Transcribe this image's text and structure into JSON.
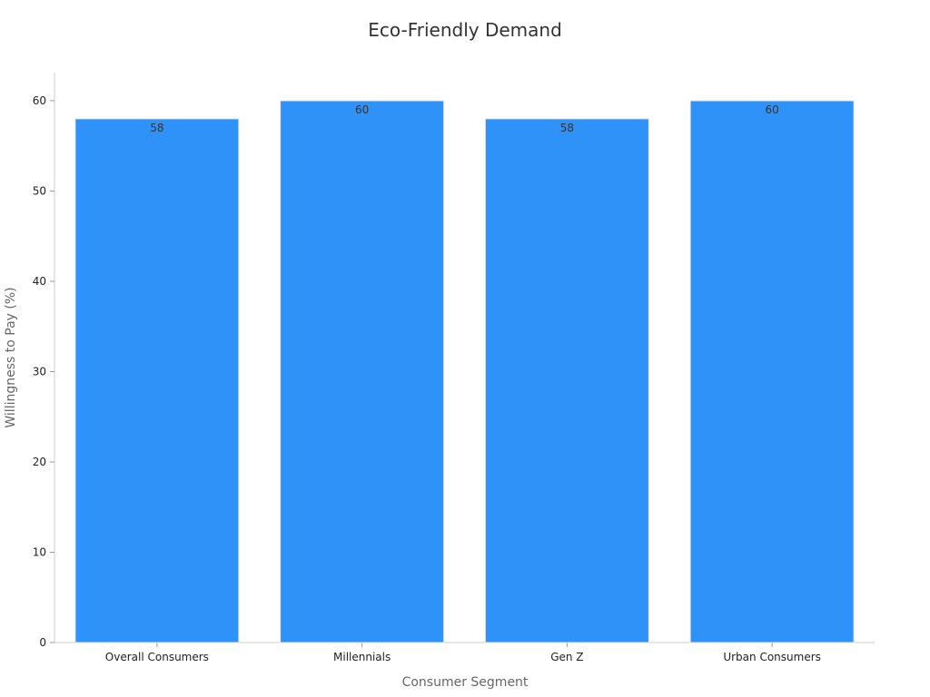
{
  "chart_data": {
    "type": "bar",
    "title": "Eco-Friendly Demand",
    "xlabel": "Consumer Segment",
    "ylabel": "Willingness to Pay (%)",
    "categories": [
      "Overall Consumers",
      "Millennials",
      "Gen Z",
      "Urban Consumers"
    ],
    "values": [
      58,
      60,
      58,
      60
    ],
    "data_labels": [
      "58",
      "60",
      "58",
      "60"
    ],
    "ylim": [
      0,
      63
    ],
    "yticks": [
      0,
      10,
      20,
      30,
      40,
      50,
      60
    ],
    "grid": false,
    "legend": "none",
    "bar_color": "#2f92f8"
  }
}
